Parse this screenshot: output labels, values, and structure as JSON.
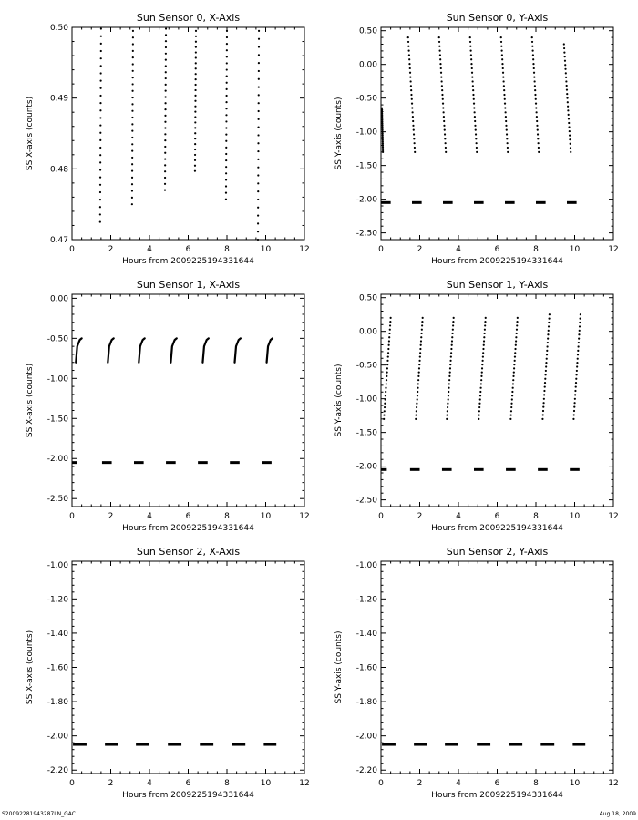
{
  "footer": {
    "file_name": "S20092281943287LN_GAC",
    "date": "Aug 18, 2009"
  },
  "chart_data": [
    {
      "type": "scatter",
      "title": "Sun Sensor 0, X-Axis",
      "xlabel": "Hours from 2009225194331644",
      "ylabel": "SS X-axis (counts)",
      "xlim": [
        0,
        12
      ],
      "ylim": [
        0.47,
        0.5
      ],
      "xticks": [
        "0",
        "2",
        "4",
        "6",
        "8",
        "10",
        "12"
      ],
      "yticks": [
        "0.47",
        "0.48",
        "0.49",
        "0.50"
      ],
      "segments": [
        {
          "x": [
            1.45,
            1.5
          ],
          "y": [
            0.4725,
            0.4998
          ]
        },
        {
          "x": [
            3.1,
            3.15
          ],
          "y": [
            0.475,
            0.4995
          ]
        },
        {
          "x": [
            4.8,
            4.85
          ],
          "y": [
            0.477,
            0.4998
          ]
        },
        {
          "x": [
            6.35,
            6.4
          ],
          "y": [
            0.4797,
            0.4995
          ]
        },
        {
          "x": [
            7.95,
            8.0
          ],
          "y": [
            0.4757,
            0.4995
          ]
        },
        {
          "x": [
            9.6,
            9.65
          ],
          "y": [
            0.47,
            0.4995
          ]
        }
      ]
    },
    {
      "type": "scatter",
      "title": "Sun Sensor 0, Y-Axis",
      "xlabel": "Hours from 2009225194331644",
      "ylabel": "SS Y-axis (counts)",
      "xlim": [
        0,
        12
      ],
      "ylim": [
        -2.6,
        0.55
      ],
      "xticks": [
        "0",
        "2",
        "4",
        "6",
        "8",
        "10",
        "12"
      ],
      "yticks": [
        "0.50",
        "0.00",
        "-0.50",
        "-1.00",
        "-1.50",
        "-2.00",
        "-2.50"
      ],
      "segments": [
        {
          "x": [
            0.05,
            0.1
          ],
          "y": [
            -0.65,
            -1.3
          ]
        },
        {
          "x": [
            1.4,
            1.75
          ],
          "y": [
            0.4,
            -1.3
          ]
        },
        {
          "x": [
            3.0,
            3.35
          ],
          "y": [
            0.4,
            -1.3
          ]
        },
        {
          "x": [
            4.6,
            4.95
          ],
          "y": [
            0.4,
            -1.3
          ]
        },
        {
          "x": [
            6.2,
            6.55
          ],
          "y": [
            0.4,
            -1.3
          ]
        },
        {
          "x": [
            7.8,
            8.15
          ],
          "y": [
            0.4,
            -1.3
          ]
        },
        {
          "x": [
            9.45,
            9.8
          ],
          "y": [
            0.3,
            -1.3
          ]
        }
      ],
      "dashes": {
        "y": -2.05,
        "x": [
          [
            0.0,
            0.5
          ],
          [
            1.6,
            2.1
          ],
          [
            3.2,
            3.7
          ],
          [
            4.8,
            5.3
          ],
          [
            6.4,
            6.9
          ],
          [
            8.0,
            8.5
          ],
          [
            9.6,
            10.1
          ]
        ]
      }
    },
    {
      "type": "scatter",
      "title": "Sun Sensor 1, X-Axis",
      "xlabel": "Hours from 2009225194331644",
      "ylabel": "SS X-axis (counts)",
      "xlim": [
        0,
        12
      ],
      "ylim": [
        -2.6,
        0.05
      ],
      "xticks": [
        "0",
        "2",
        "4",
        "6",
        "8",
        "10",
        "12"
      ],
      "yticks": [
        "0.00",
        "-0.50",
        "-1.00",
        "-1.50",
        "-2.00",
        "-2.50"
      ],
      "curves": [
        {
          "x": [
            0.2,
            0.27,
            0.4,
            0.5
          ],
          "y": [
            -0.8,
            -0.6,
            -0.52,
            -0.5
          ]
        },
        {
          "x": [
            1.85,
            1.92,
            2.05,
            2.15
          ],
          "y": [
            -0.8,
            -0.6,
            -0.52,
            -0.5
          ]
        },
        {
          "x": [
            3.45,
            3.52,
            3.65,
            3.75
          ],
          "y": [
            -0.8,
            -0.6,
            -0.52,
            -0.5
          ]
        },
        {
          "x": [
            5.1,
            5.17,
            5.3,
            5.4
          ],
          "y": [
            -0.8,
            -0.6,
            -0.52,
            -0.5
          ]
        },
        {
          "x": [
            6.75,
            6.82,
            6.95,
            7.05
          ],
          "y": [
            -0.8,
            -0.6,
            -0.52,
            -0.5
          ]
        },
        {
          "x": [
            8.4,
            8.47,
            8.6,
            8.7
          ],
          "y": [
            -0.8,
            -0.6,
            -0.52,
            -0.5
          ]
        },
        {
          "x": [
            10.05,
            10.12,
            10.25,
            10.35
          ],
          "y": [
            -0.8,
            -0.6,
            -0.52,
            -0.5
          ]
        }
      ],
      "dashes": {
        "y": -2.05,
        "x": [
          [
            0.0,
            0.25
          ],
          [
            1.55,
            2.05
          ],
          [
            3.2,
            3.7
          ],
          [
            4.85,
            5.35
          ],
          [
            6.5,
            7.0
          ],
          [
            8.15,
            8.65
          ],
          [
            9.8,
            10.3
          ]
        ]
      }
    },
    {
      "type": "scatter",
      "title": "Sun Sensor 1, Y-Axis",
      "xlabel": "Hours from 2009225194331644",
      "ylabel": "SS Y-axis (counts)",
      "xlim": [
        0,
        12
      ],
      "ylim": [
        -2.6,
        0.55
      ],
      "xticks": [
        "0",
        "2",
        "4",
        "6",
        "8",
        "10",
        "12"
      ],
      "yticks": [
        "0.50",
        "0.00",
        "-0.50",
        "-1.00",
        "-1.50",
        "-2.00",
        "-2.50"
      ],
      "segments": [
        {
          "x": [
            0.15,
            0.5
          ],
          "y": [
            -1.3,
            0.2
          ]
        },
        {
          "x": [
            1.8,
            2.15
          ],
          "y": [
            -1.3,
            0.2
          ]
        },
        {
          "x": [
            3.4,
            3.75
          ],
          "y": [
            -1.3,
            0.2
          ]
        },
        {
          "x": [
            5.05,
            5.4
          ],
          "y": [
            -1.3,
            0.2
          ]
        },
        {
          "x": [
            6.7,
            7.05
          ],
          "y": [
            -1.3,
            0.2
          ]
        },
        {
          "x": [
            8.35,
            8.7
          ],
          "y": [
            -1.3,
            0.25
          ]
        },
        {
          "x": [
            9.95,
            10.3
          ],
          "y": [
            -1.3,
            0.25
          ]
        }
      ],
      "dashes": {
        "y": -2.05,
        "x": [
          [
            0.0,
            0.3
          ],
          [
            1.5,
            2.0
          ],
          [
            3.15,
            3.65
          ],
          [
            4.8,
            5.3
          ],
          [
            6.45,
            6.95
          ],
          [
            8.1,
            8.6
          ],
          [
            9.75,
            10.25
          ]
        ]
      }
    },
    {
      "type": "scatter",
      "title": "Sun Sensor 2, X-Axis",
      "xlabel": "Hours from 2009225194331644",
      "ylabel": "SS X-axis (counts)",
      "xlim": [
        0,
        12
      ],
      "ylim": [
        -2.22,
        -0.98
      ],
      "xticks": [
        "0",
        "2",
        "4",
        "6",
        "8",
        "10",
        "12"
      ],
      "yticks": [
        "-1.00",
        "-1.20",
        "-1.40",
        "-1.60",
        "-1.80",
        "-2.00",
        "-2.20"
      ],
      "dashes": {
        "y": -2.05,
        "x": [
          [
            0.05,
            0.75
          ],
          [
            1.7,
            2.4
          ],
          [
            3.3,
            4.0
          ],
          [
            4.95,
            5.65
          ],
          [
            6.6,
            7.3
          ],
          [
            8.25,
            8.95
          ],
          [
            9.9,
            10.55
          ]
        ]
      }
    },
    {
      "type": "scatter",
      "title": "Sun Sensor 2, Y-Axis",
      "xlabel": "Hours from 2009225194331644",
      "ylabel": "SS Y-axis (counts)",
      "xlim": [
        0,
        12
      ],
      "ylim": [
        -2.22,
        -0.98
      ],
      "xticks": [
        "0",
        "2",
        "4",
        "6",
        "8",
        "10",
        "12"
      ],
      "yticks": [
        "-1.00",
        "-1.20",
        "-1.40",
        "-1.60",
        "-1.80",
        "-2.00",
        "-2.20"
      ],
      "dashes": {
        "y": -2.05,
        "x": [
          [
            0.05,
            0.75
          ],
          [
            1.7,
            2.4
          ],
          [
            3.3,
            4.0
          ],
          [
            4.95,
            5.65
          ],
          [
            6.6,
            7.3
          ],
          [
            8.25,
            8.95
          ],
          [
            9.9,
            10.55
          ]
        ]
      }
    }
  ]
}
